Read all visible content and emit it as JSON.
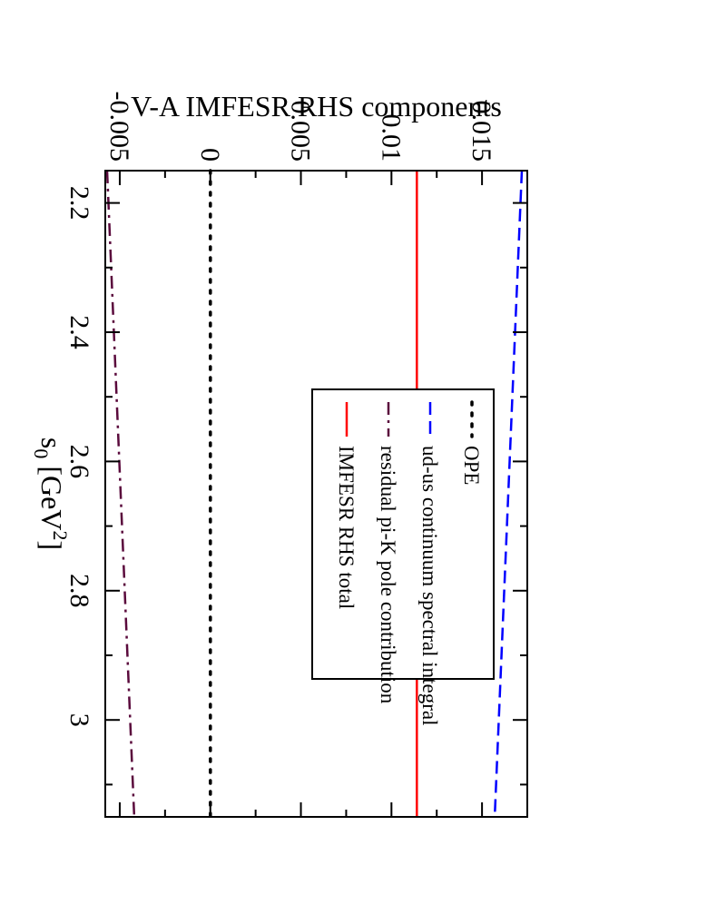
{
  "chart_data": {
    "type": "line",
    "orientation": "rotated-90-clockwise",
    "xlabel_main": "s",
    "xlabel_sub": "0",
    "xlabel_unit_open": "[GeV",
    "xlabel_unit_sup": "2",
    "xlabel_unit_close": "]",
    "ylabel": "V-A IMFESR RHS components",
    "xlim": [
      2.15,
      3.15
    ],
    "ylim": [
      -0.0058,
      0.0175
    ],
    "x_ticks": [
      {
        "value": 2.2,
        "label": "2.2"
      },
      {
        "value": 2.4,
        "label": "2.4"
      },
      {
        "value": 2.6,
        "label": "2.6"
      },
      {
        "value": 2.8,
        "label": "2.8"
      },
      {
        "value": 3.0,
        "label": "3"
      }
    ],
    "y_ticks": [
      {
        "value": -0.005,
        "label": "-0.005"
      },
      {
        "value": 0,
        "label": "0"
      },
      {
        "value": 0.005,
        "label": "0.005"
      },
      {
        "value": 0.01,
        "label": "0.01"
      },
      {
        "value": 0.015,
        "label": "0.015"
      }
    ],
    "legend_position": "top-center",
    "grid": false,
    "series": [
      {
        "name": "OPE",
        "color": "#000000",
        "style": "dotted",
        "x": [
          2.15,
          3.15
        ],
        "y": [
          0.0,
          0.0
        ]
      },
      {
        "name": "ud-us continuum spectral integral",
        "color": "#0000ff",
        "style": "dashed",
        "x": [
          2.15,
          3.15
        ],
        "y": [
          0.0172,
          0.0157
        ]
      },
      {
        "name": "residual pi-K pole contribution",
        "color": "#5a0a3c",
        "style": "dashdot",
        "x": [
          2.15,
          3.15
        ],
        "y": [
          -0.0057,
          -0.0042
        ]
      },
      {
        "name": "IMFESR RHS total",
        "color": "#ff0000",
        "style": "solid",
        "x": [
          2.15,
          3.15
        ],
        "y": [
          0.0114,
          0.0114
        ]
      }
    ]
  }
}
